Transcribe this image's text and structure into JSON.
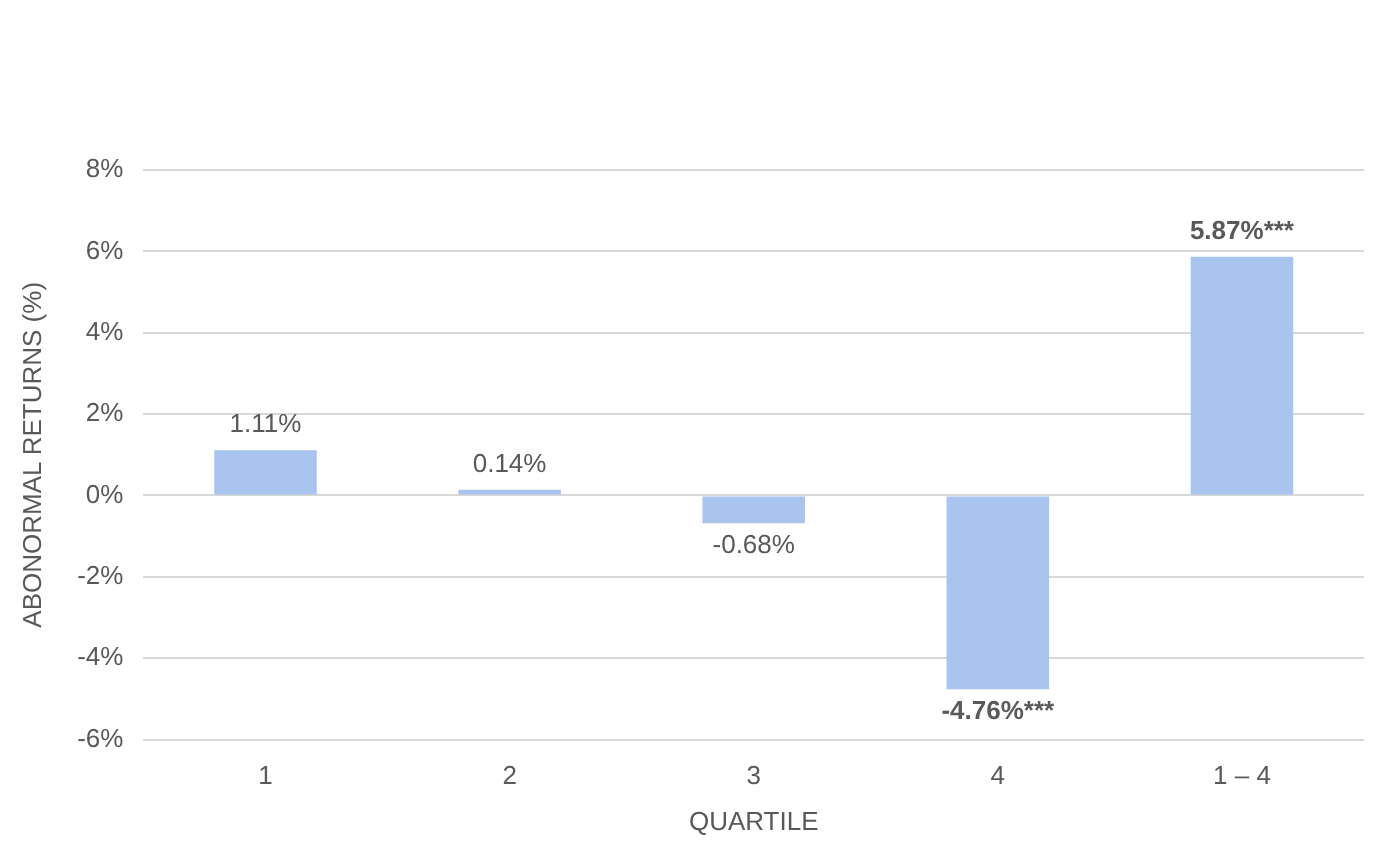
{
  "chart_data": {
    "type": "bar",
    "xlabel": "QUARTILE",
    "ylabel": "ABONORMAL RETURNS (%)",
    "categories": [
      "1",
      "2",
      "3",
      "4",
      "1 – 4"
    ],
    "values": [
      1.11,
      0.14,
      -0.68,
      -4.76,
      5.87
    ],
    "value_labels": [
      "1.11%",
      "0.14%",
      "-0.68%",
      "-4.76%***",
      "5.87%***"
    ],
    "color": "#a9c5ef",
    "ylim": [
      -6,
      8
    ],
    "yticks": [
      {
        "value": -6,
        "label": "-6%"
      },
      {
        "value": -4,
        "label": "-4%"
      },
      {
        "value": -2,
        "label": "-2%"
      },
      {
        "value": 0,
        "label": "0%"
      },
      {
        "value": 2,
        "label": "2%"
      },
      {
        "value": 4,
        "label": "4%"
      },
      {
        "value": 6,
        "label": "6%"
      },
      {
        "value": 8,
        "label": "8%"
      }
    ],
    "grid": "y",
    "legend": false
  }
}
